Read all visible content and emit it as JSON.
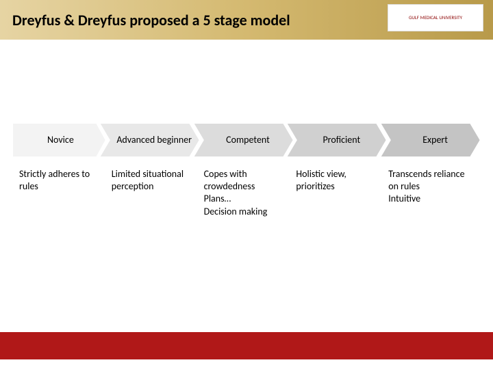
{
  "header": {
    "title": "Dreyfus & Dreyfus proposed a 5 stage model",
    "logo_text": "GULF MEDICAL UNIVERSITY",
    "gradient_start": "#e6d4a3",
    "gradient_mid": "#d4b970",
    "gradient_end": "#b89a4a"
  },
  "stages": [
    {
      "label": "Novice",
      "fill": "#f3f3f3",
      "desc": "Strictly adheres to rules"
    },
    {
      "label": "Advanced beginner",
      "fill": "#e8e8e8",
      "desc": "Limited situational perception"
    },
    {
      "label": "Competent",
      "fill": "#dcdcdc",
      "desc": "Copes with crowdedness\nPlans…\nDecision making"
    },
    {
      "label": "Proficient",
      "fill": "#d0d0d0",
      "desc": "Holistic view, prioritizes"
    },
    {
      "label": "Expert",
      "fill": "#c4c4c4",
      "desc": "Transcends reliance on rules\nIntuitive"
    }
  ],
  "chevron": {
    "stroke": "#ffffff",
    "stroke_width": 2,
    "height": 50,
    "notch": 14
  },
  "footer": {
    "color": "#b01818",
    "height": 40
  },
  "typography": {
    "title_fontsize": 22,
    "stage_label_fontsize": 14,
    "desc_fontsize": 14
  }
}
